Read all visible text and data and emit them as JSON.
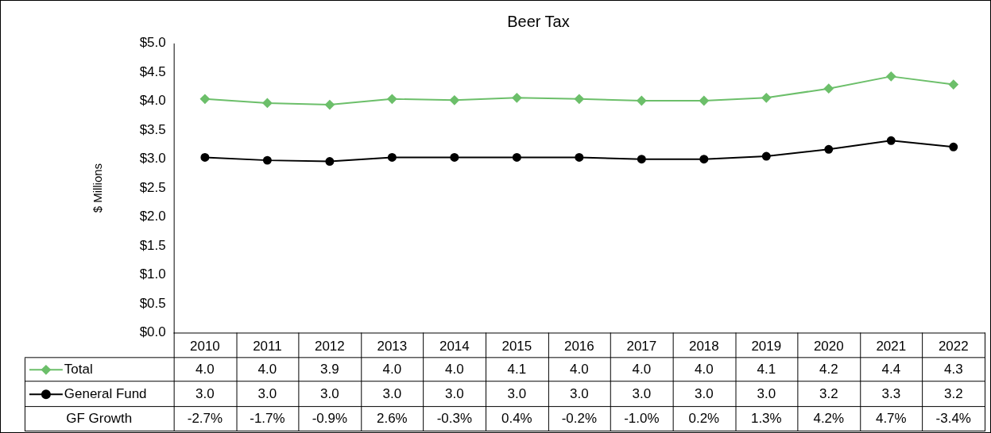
{
  "chart_data": {
    "type": "line",
    "title": "Beer Tax",
    "ylabel": "$ Millions",
    "categories": [
      "2010",
      "2011",
      "2012",
      "2013",
      "2014",
      "2015",
      "2016",
      "2017",
      "2018",
      "2019",
      "2020",
      "2021",
      "2022"
    ],
    "series": [
      {
        "name": "Total",
        "color": "#6cbf6a",
        "marker": "diamond",
        "values": [
          4.04,
          3.97,
          3.94,
          4.04,
          4.02,
          4.06,
          4.04,
          4.01,
          4.01,
          4.06,
          4.22,
          4.43,
          4.29
        ],
        "value_labels": [
          "4.0",
          "4.0",
          "3.9",
          "4.0",
          "4.0",
          "4.1",
          "4.0",
          "4.0",
          "4.0",
          "4.1",
          "4.2",
          "4.4",
          "4.3"
        ]
      },
      {
        "name": "General Fund",
        "color": "#000000",
        "marker": "circle",
        "values": [
          3.03,
          2.98,
          2.96,
          3.03,
          3.03,
          3.03,
          3.03,
          3.0,
          3.0,
          3.05,
          3.17,
          3.32,
          3.21
        ],
        "value_labels": [
          "3.0",
          "3.0",
          "3.0",
          "3.0",
          "3.0",
          "3.0",
          "3.0",
          "3.0",
          "3.0",
          "3.0",
          "3.2",
          "3.3",
          "3.2"
        ]
      }
    ],
    "annotations": [
      "GF Growth",
      "-2.7%",
      "-1.7%",
      "-0.9%",
      "2.6%",
      "-0.3%",
      "0.4%",
      "-0.2%",
      "-1.0%",
      "0.2%",
      "1.3%",
      "4.2%",
      "4.7%",
      "-3.4%"
    ],
    "ylim": [
      0,
      5
    ],
    "yticks": [
      {
        "value": 0,
        "label": "$0.0"
      },
      {
        "value": 0.5,
        "label": "$0.5"
      },
      {
        "value": 1,
        "label": "$1.0"
      },
      {
        "value": 1.5,
        "label": "$1.5"
      },
      {
        "value": 2,
        "label": "$2.0"
      },
      {
        "value": 2.5,
        "label": "$2.5"
      },
      {
        "value": 3,
        "label": "$3.0"
      },
      {
        "value": 3.5,
        "label": "$3.5"
      },
      {
        "value": 4,
        "label": "$4.0"
      },
      {
        "value": 4.5,
        "label": "$4.5"
      },
      {
        "value": 5,
        "label": "$5.0"
      }
    ],
    "grid": false,
    "legend": "bottom"
  }
}
